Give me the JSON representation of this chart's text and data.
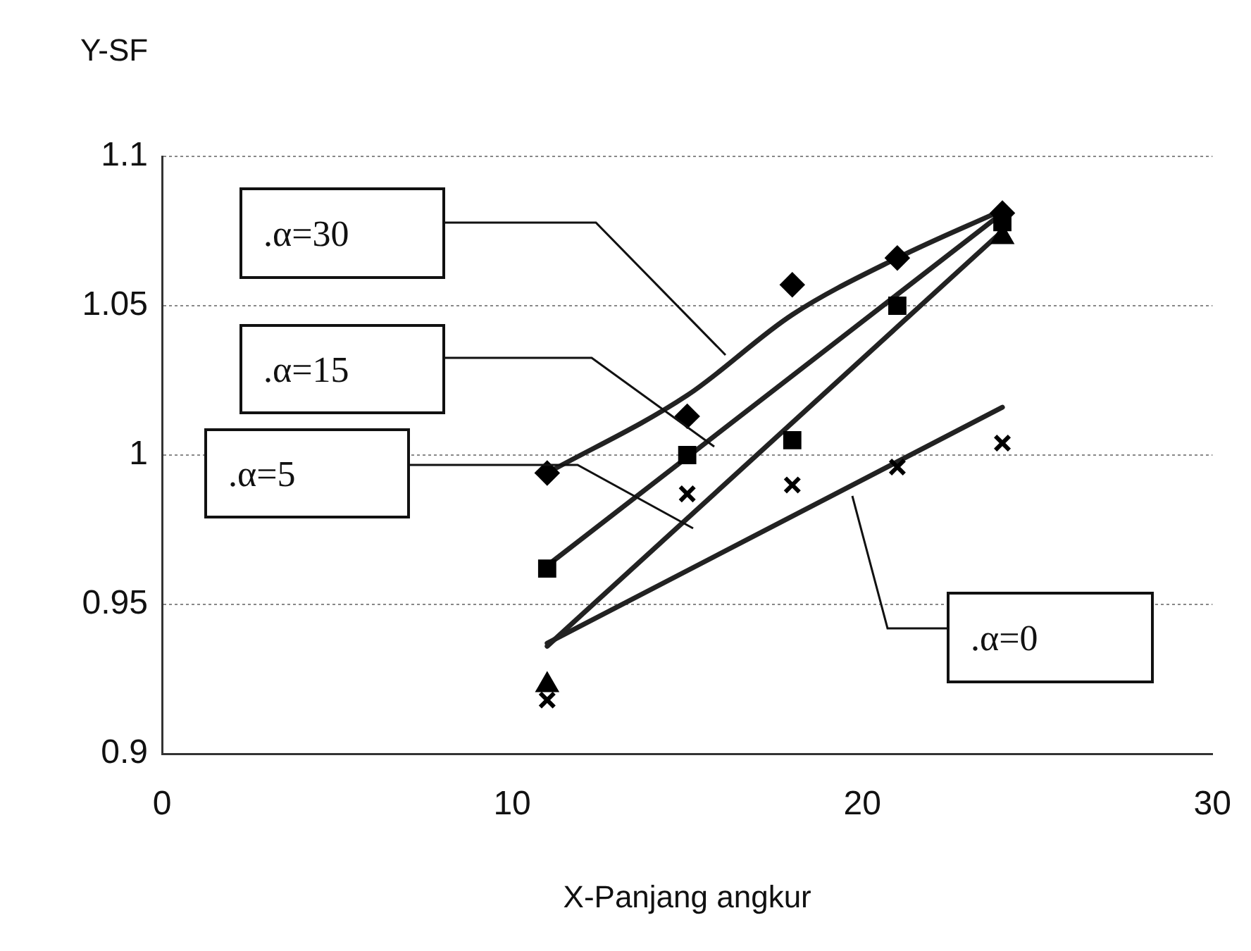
{
  "chart_data": {
    "type": "scatter",
    "xlabel": "X-Panjang angkur",
    "ylabel": "Y-SF",
    "x": [
      11,
      15,
      18,
      21,
      24
    ],
    "xlim": [
      0,
      30
    ],
    "xticks": [
      0,
      10,
      20,
      30
    ],
    "ylim": [
      0.9,
      1.1
    ],
    "yticks": [
      0.9,
      0.95,
      1,
      1.05,
      1.1
    ],
    "grid": "y",
    "legend": false,
    "series": [
      {
        "marker": "diamond",
        "color": "#000000",
        "values": [
          0.994,
          1.013,
          1.057,
          1.066,
          1.081
        ]
      },
      {
        "marker": "square",
        "color": "#000000",
        "values": [
          0.962,
          1.0,
          1.005,
          1.05,
          1.078
        ]
      },
      {
        "marker": "triangle",
        "color": "#000000",
        "values": [
          0.923,
          null,
          null,
          null,
          1.073
        ]
      },
      {
        "marker": "cross",
        "color": "#000000",
        "values": [
          0.918,
          0.987,
          0.99,
          0.996,
          1.004
        ]
      },
      {
        "type": "line",
        "marker": "none",
        "color": "#222222",
        "x": [
          11,
          15,
          18,
          21,
          24
        ],
        "values": [
          0.994,
          1.02,
          1.047,
          1.066,
          1.082
        ]
      },
      {
        "type": "line",
        "marker": "none",
        "color": "#222222",
        "x": [
          11,
          24
        ],
        "values": [
          0.963,
          1.081
        ]
      },
      {
        "type": "line",
        "marker": "none",
        "color": "#222222",
        "x": [
          11,
          24
        ],
        "values": [
          0.936,
          1.075
        ]
      },
      {
        "type": "line",
        "marker": "none",
        "color": "#222222",
        "x": [
          11,
          24
        ],
        "values": [
          0.937,
          1.016
        ]
      }
    ],
    "annotations": [
      ".α=30",
      ".α=15",
      ".α=5",
      ".α=0"
    ]
  }
}
